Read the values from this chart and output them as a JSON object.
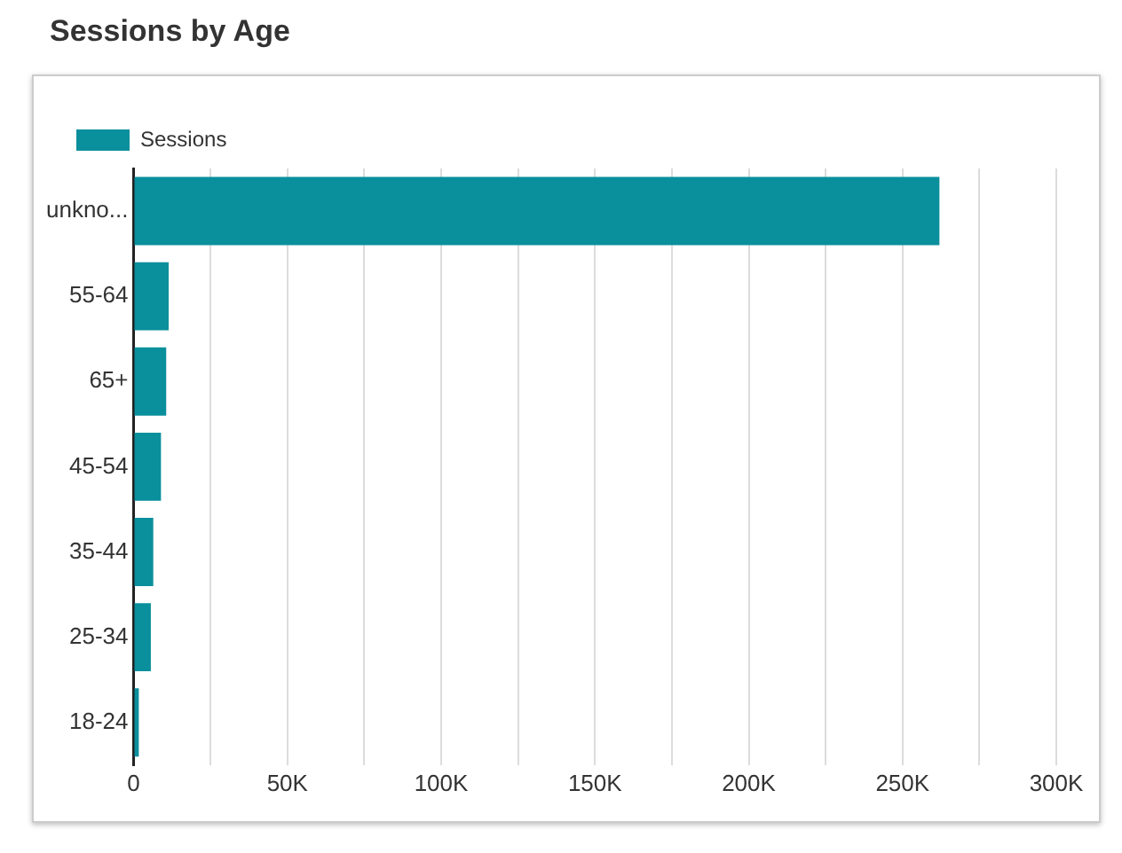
{
  "chart_data": {
    "type": "bar",
    "orientation": "horizontal",
    "title": "Sessions by Age",
    "categories": [
      "unkno...",
      "55-64",
      "65+",
      "45-54",
      "35-44",
      "25-34",
      "18-24"
    ],
    "series": [
      {
        "name": "Sessions",
        "color": "#0a8f9c",
        "values": [
          262000,
          11400,
          10600,
          8900,
          6400,
          5600,
          1700
        ]
      }
    ],
    "xlim": [
      0,
      300000
    ],
    "xticks": [
      0,
      {
        "value": 25000,
        "label": null
      },
      {
        "value": 50000,
        "label": "50K"
      },
      {
        "value": 75000,
        "label": null
      },
      {
        "value": 100000,
        "label": "100K"
      },
      {
        "value": 125000,
        "label": null
      },
      {
        "value": 150000,
        "label": "150K"
      },
      {
        "value": 175000,
        "label": null
      },
      {
        "value": 200000,
        "label": "200K"
      },
      {
        "value": 225000,
        "label": null
      },
      {
        "value": 250000,
        "label": "250K"
      },
      {
        "value": 275000,
        "label": null
      },
      {
        "value": 300000,
        "label": "300K"
      }
    ],
    "grid": "x",
    "legend": "top left"
  }
}
